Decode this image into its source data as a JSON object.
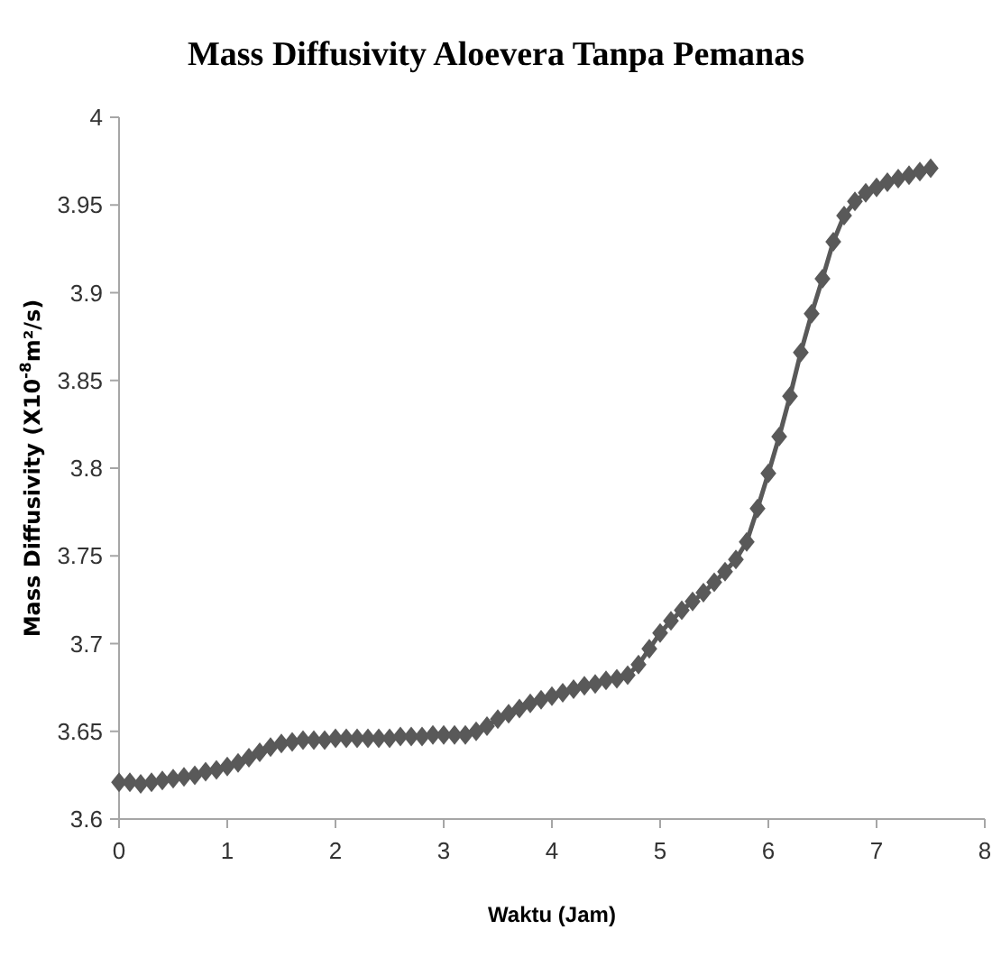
{
  "chart_data": {
    "type": "line",
    "title": "Mass Diffusivity Aloevera Tanpa Pemanas",
    "xlabel": "Waktu (Jam)",
    "ylabel": "Mass Diffusivity (X10$^{-8}$m²/s)",
    "x": [
      0,
      0.1,
      0.2,
      0.3,
      0.4,
      0.5,
      0.6,
      0.7,
      0.8,
      0.9,
      1,
      1.1,
      1.2,
      1.3,
      1.4,
      1.5,
      1.6,
      1.7,
      1.8,
      1.9,
      2,
      2.1,
      2.2,
      2.3,
      2.4,
      2.5,
      2.6,
      2.7,
      2.8,
      2.9,
      3,
      3.1,
      3.2,
      3.3,
      3.4,
      3.5,
      3.6,
      3.7,
      3.8,
      3.9,
      4,
      4.1,
      4.2,
      4.3,
      4.4,
      4.5,
      4.6,
      4.7,
      4.8,
      4.9,
      5,
      5.1,
      5.2,
      5.3,
      5.4,
      5.5,
      5.6,
      5.7,
      5.8,
      5.9,
      6,
      6.1,
      6.2,
      6.3,
      6.4,
      6.5,
      6.6,
      6.7,
      6.8,
      6.9,
      7,
      7.1,
      7.2,
      7.3,
      7.4,
      7.5
    ],
    "series": [
      {
        "color": "#595959",
        "values": [
          3.621,
          3.621,
          3.62,
          3.621,
          3.622,
          3.623,
          3.624,
          3.625,
          3.627,
          3.628,
          3.63,
          3.632,
          3.635,
          3.638,
          3.641,
          3.643,
          3.644,
          3.645,
          3.645,
          3.645,
          3.646,
          3.646,
          3.646,
          3.646,
          3.646,
          3.646,
          3.647,
          3.647,
          3.647,
          3.648,
          3.648,
          3.648,
          3.648,
          3.65,
          3.653,
          3.657,
          3.66,
          3.663,
          3.666,
          3.668,
          3.67,
          3.672,
          3.674,
          3.676,
          3.677,
          3.679,
          3.68,
          3.682,
          3.688,
          3.697,
          3.706,
          3.713,
          3.719,
          3.724,
          3.729,
          3.735,
          3.741,
          3.748,
          3.758,
          3.777,
          3.797,
          3.818,
          3.841,
          3.866,
          3.888,
          3.908,
          3.929,
          3.944,
          3.952,
          3.957,
          3.96,
          3.963,
          3.965,
          3.967,
          3.969,
          3.971
        ]
      }
    ],
    "xlim": [
      0,
      8
    ],
    "xticks": [
      0,
      1,
      2,
      3,
      4,
      5,
      6,
      7,
      8
    ],
    "ylim": [
      3.6,
      4
    ],
    "yticks": [
      3.6,
      3.65,
      3.7,
      3.75,
      3.8,
      3.85,
      3.9,
      3.95,
      4
    ],
    "grid": false,
    "marker": "diamond",
    "line_style": "solid"
  }
}
